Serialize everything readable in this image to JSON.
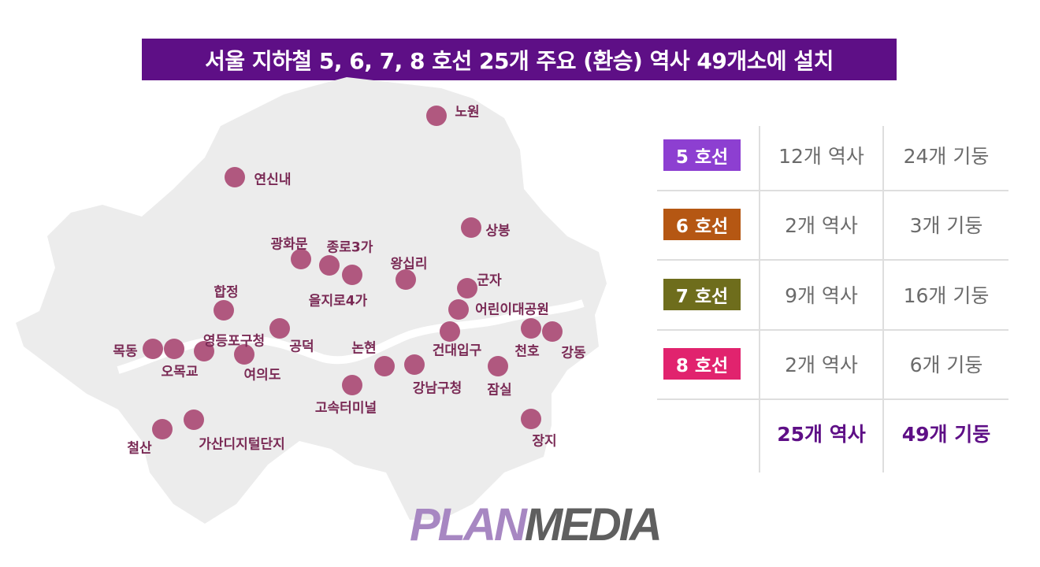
{
  "title": "서울 지하철 5, 6, 7, 8 호선 25개 주요 (환승) 역사 49개소에 설치",
  "stations": [
    {
      "name": "노원"
    },
    {
      "name": "연신내"
    },
    {
      "name": "상봉"
    },
    {
      "name": "광화문"
    },
    {
      "name": "종로3가"
    },
    {
      "name": "을지로4가"
    },
    {
      "name": "왕십리"
    },
    {
      "name": "군자"
    },
    {
      "name": "어린이대공원"
    },
    {
      "name": "합정"
    },
    {
      "name": "공덕"
    },
    {
      "name": "영등포구청"
    },
    {
      "name": "목동"
    },
    {
      "name": "오목교"
    },
    {
      "name": "여의도"
    },
    {
      "name": "논현"
    },
    {
      "name": "건대입구"
    },
    {
      "name": "천호"
    },
    {
      "name": "강동"
    },
    {
      "name": "강남구청"
    },
    {
      "name": "잠실"
    },
    {
      "name": "고속터미널"
    },
    {
      "name": "가산디지털단지"
    },
    {
      "name": "철산"
    },
    {
      "name": "장지"
    }
  ],
  "table": {
    "rows": [
      {
        "line": "5 호선",
        "stations": "12개 역사",
        "pillars": "24개 기둥",
        "color": "#8d3fd1"
      },
      {
        "line": "6 호선",
        "stations": "2개 역사",
        "pillars": "3개 기둥",
        "color": "#b55713"
      },
      {
        "line": "7 호선",
        "stations": "9개 역사",
        "pillars": "16개 기둥",
        "color": "#6e6d1c"
      },
      {
        "line": "8 호선",
        "stations": "2개 역사",
        "pillars": "6개 기둥",
        "color": "#e1236e"
      }
    ],
    "total": {
      "stations": "25개 역사",
      "pillars": "49개 기둥"
    }
  },
  "logo": {
    "part1": "PLAN",
    "part2": "MEDIA"
  }
}
